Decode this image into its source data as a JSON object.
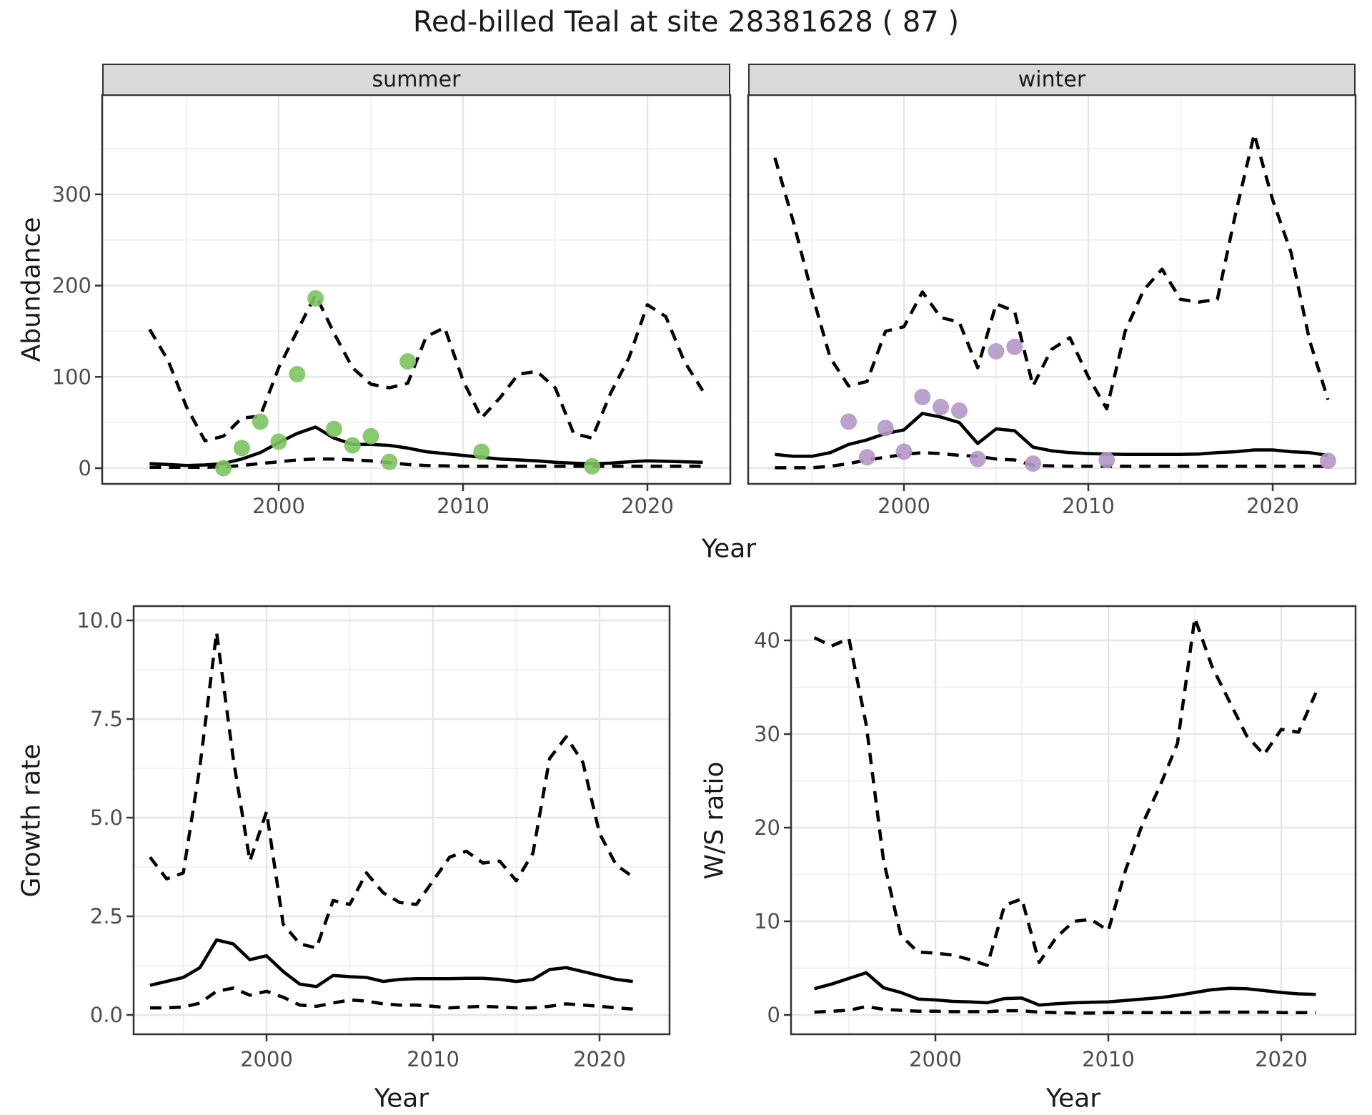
{
  "title": "Red-billed Teal at site 28381628 ( 87 )",
  "facets": {
    "summer_label": "summer",
    "winter_label": "winter"
  },
  "axes": {
    "abundance_label": "Abundance",
    "year_label_top": "Year",
    "year_label_growth": "Year",
    "year_label_ws": "Year",
    "growth_label": "Growth rate",
    "ws_label": "W/S ratio"
  },
  "colors": {
    "summer_points": "#7cc462",
    "winter_points": "#b596c8",
    "line": "#000000",
    "grid_major": "#e6e6e6",
    "grid_minor": "#f0f0f0",
    "panel_border": "#333333",
    "strip_bg": "#d9d9d9",
    "tick_text": "#4d4d4d",
    "text": "#1a1a1a"
  },
  "chart_data": [
    {
      "type": "line",
      "facet": "summer",
      "title": "Red-billed Teal at site 28381628 ( 87 )",
      "xlabel": "Year",
      "ylabel": "Abundance",
      "legend_position": "none",
      "grid": true,
      "xlim": [
        1990.5,
        2024.5
      ],
      "ylim": [
        -17,
        409
      ],
      "x_ticks": [
        2000,
        2010,
        2020
      ],
      "x_tick_labels": [
        "2000",
        "2010",
        "2020"
      ],
      "x_minor": [
        1995,
        2005,
        2015
      ],
      "y_ticks": [
        0,
        100,
        200,
        300
      ],
      "y_tick_labels": [
        "0",
        "100",
        "200",
        "300"
      ],
      "y_minor": [
        50,
        150,
        250,
        350
      ],
      "x": [
        1993,
        1994,
        1995,
        1996,
        1997,
        1998,
        1999,
        2000,
        2001,
        2002,
        2003,
        2004,
        2005,
        2006,
        2007,
        2008,
        2009,
        2010,
        2011,
        2012,
        2013,
        2014,
        2015,
        2016,
        2017,
        2018,
        2019,
        2020,
        2021,
        2022,
        2023
      ],
      "series": [
        {
          "name": "upper_ci",
          "style": "dashed",
          "values": [
            152,
            118,
            67,
            30,
            35,
            55,
            57,
            110,
            150,
            190,
            148,
            110,
            92,
            88,
            93,
            144,
            154,
            96,
            55,
            77,
            103,
            106,
            88,
            38,
            33,
            82,
            121,
            179,
            166,
            117,
            85
          ]
        },
        {
          "name": "median",
          "style": "solid",
          "values": [
            5,
            4,
            3,
            3.5,
            5,
            10,
            17,
            28,
            38,
            45,
            33,
            26,
            26,
            25,
            22,
            18,
            16,
            14,
            12,
            10,
            9,
            8,
            6.5,
            5.5,
            4.7,
            5.5,
            7,
            8,
            7.5,
            7,
            6.5
          ]
        },
        {
          "name": "lower_ci",
          "style": "dashed",
          "values": [
            1,
            1,
            1,
            1,
            1.5,
            3,
            5,
            7,
            9,
            10,
            10,
            9,
            8,
            6,
            4,
            3,
            2.5,
            2,
            2,
            2,
            2,
            2,
            2,
            2,
            2,
            2,
            2,
            2,
            2,
            2,
            2
          ]
        }
      ],
      "points": {
        "name": "observed_counts",
        "color": "#7cc462",
        "x": [
          1997,
          1998,
          1999,
          2000,
          2001,
          2002,
          2003,
          2004,
          2005,
          2006,
          2007,
          2011,
          2017
        ],
        "y": [
          0,
          22,
          51,
          29,
          103,
          186,
          43,
          25,
          35,
          7,
          117,
          18,
          2
        ]
      }
    },
    {
      "type": "line",
      "facet": "winter",
      "title": "Red-billed Teal at site 28381628 ( 87 )",
      "xlabel": "Year",
      "ylabel": "Abundance",
      "legend_position": "none",
      "grid": true,
      "xlim": [
        1991.5,
        2024.5
      ],
      "ylim": [
        -17,
        409
      ],
      "x_ticks": [
        2000,
        2010,
        2020
      ],
      "x_tick_labels": [
        "2000",
        "2010",
        "2020"
      ],
      "x_minor": [
        1995,
        2005,
        2015
      ],
      "y_ticks": [
        0,
        100,
        200,
        300
      ],
      "y_tick_labels": [
        "0",
        "100",
        "200",
        "300"
      ],
      "y_minor": [
        50,
        150,
        250,
        350
      ],
      "x": [
        1993,
        1994,
        1995,
        1996,
        1997,
        1998,
        1999,
        2000,
        2001,
        2002,
        2003,
        2004,
        2005,
        2006,
        2007,
        2008,
        2009,
        2010,
        2011,
        2012,
        2013,
        2014,
        2015,
        2016,
        2017,
        2018,
        2019,
        2020,
        2021,
        2022,
        2023
      ],
      "series": [
        {
          "name": "upper_ci",
          "style": "dashed",
          "values": [
            340,
            270,
            192,
            121,
            90,
            95,
            150,
            155,
            193,
            165,
            160,
            110,
            180,
            172,
            90,
            130,
            143,
            100,
            65,
            150,
            195,
            218,
            185,
            182,
            185,
            280,
            366,
            294,
            236,
            140,
            75
          ]
        },
        {
          "name": "median",
          "style": "solid",
          "values": [
            15,
            13,
            13,
            17,
            26,
            31,
            38,
            42,
            60,
            56,
            50,
            27,
            43,
            41,
            23,
            19,
            17,
            16,
            15.5,
            15,
            15,
            15,
            15,
            15.5,
            17,
            18,
            20,
            20,
            18,
            17,
            14
          ]
        },
        {
          "name": "lower_ci",
          "style": "dashed",
          "values": [
            0.5,
            0.5,
            0.5,
            2,
            5,
            9,
            12,
            15,
            17,
            16,
            14,
            13,
            10,
            9,
            3,
            2.5,
            2,
            2,
            2,
            2,
            2,
            2,
            2,
            2,
            2,
            2,
            2,
            2,
            2,
            2,
            2
          ]
        }
      ],
      "points": {
        "name": "observed_counts",
        "color": "#b596c8",
        "x": [
          1997,
          1998,
          1999,
          2000,
          2001,
          2002,
          2003,
          2004,
          2005,
          2006,
          2007,
          2011,
          2023
        ],
        "y": [
          51,
          12,
          44,
          18,
          78,
          67,
          63,
          10,
          128,
          133,
          5,
          9,
          8
        ]
      }
    },
    {
      "type": "line",
      "facet": null,
      "title": "",
      "xlabel": "Year",
      "ylabel": "Growth rate",
      "legend_position": "none",
      "grid": true,
      "xlim": [
        1992,
        2024.2
      ],
      "ylim": [
        -0.5,
        10.4
      ],
      "x_ticks": [
        2000,
        2010,
        2020
      ],
      "x_tick_labels": [
        "2000",
        "2010",
        "2020"
      ],
      "x_minor": [
        1995,
        2005,
        2015
      ],
      "y_ticks": [
        0,
        2.5,
        5,
        7.5,
        10
      ],
      "y_tick_labels": [
        "0.0",
        "2.5",
        "5.0",
        "7.5",
        "10.0"
      ],
      "y_minor": [
        1.25,
        3.75,
        6.25,
        8.75
      ],
      "x": [
        1993,
        1994,
        1995,
        1996,
        1997,
        1998,
        1999,
        2000,
        2001,
        2002,
        2003,
        2004,
        2005,
        2006,
        2007,
        2008,
        2009,
        2010,
        2011,
        2012,
        2013,
        2014,
        2015,
        2016,
        2017,
        2018,
        2019,
        2020,
        2021,
        2022
      ],
      "series": [
        {
          "name": "upper_ci",
          "style": "dashed",
          "values": [
            4.0,
            3.45,
            3.6,
            6.3,
            9.7,
            6.5,
            3.9,
            5.15,
            2.3,
            1.8,
            1.7,
            2.9,
            2.8,
            3.6,
            3.1,
            2.85,
            2.8,
            3.4,
            4.0,
            4.15,
            3.85,
            3.9,
            3.4,
            4.1,
            6.5,
            7.05,
            6.4,
            4.6,
            3.8,
            3.5
          ]
        },
        {
          "name": "median",
          "style": "solid",
          "values": [
            0.75,
            0.85,
            0.95,
            1.2,
            1.9,
            1.8,
            1.4,
            1.5,
            1.1,
            0.78,
            0.72,
            1.0,
            0.97,
            0.95,
            0.85,
            0.9,
            0.92,
            0.92,
            0.92,
            0.93,
            0.93,
            0.9,
            0.85,
            0.9,
            1.15,
            1.2,
            1.1,
            1.0,
            0.9,
            0.85
          ]
        },
        {
          "name": "lower_ci",
          "style": "dashed",
          "values": [
            0.18,
            0.18,
            0.2,
            0.3,
            0.6,
            0.68,
            0.5,
            0.6,
            0.45,
            0.25,
            0.22,
            0.3,
            0.38,
            0.35,
            0.28,
            0.25,
            0.25,
            0.22,
            0.18,
            0.2,
            0.22,
            0.2,
            0.18,
            0.18,
            0.22,
            0.28,
            0.25,
            0.22,
            0.18,
            0.15
          ]
        }
      ],
      "points": null
    },
    {
      "type": "line",
      "facet": null,
      "title": "",
      "xlabel": "Year",
      "ylabel": "W/S ratio",
      "legend_position": "none",
      "grid": true,
      "xlim": [
        1991.7,
        2024.3
      ],
      "ylim": [
        -2,
        43.7
      ],
      "x_ticks": [
        2000,
        2010,
        2020
      ],
      "x_tick_labels": [
        "2000",
        "2010",
        "2020"
      ],
      "x_minor": [
        1995,
        2005,
        2015
      ],
      "y_ticks": [
        0,
        10,
        20,
        30,
        40
      ],
      "y_tick_labels": [
        "0",
        "10",
        "20",
        "30",
        "40"
      ],
      "y_minor": [
        5,
        15,
        25,
        35
      ],
      "x": [
        1993,
        1994,
        1995,
        1996,
        1997,
        1998,
        1999,
        2000,
        2001,
        2002,
        2003,
        2004,
        2005,
        2006,
        2007,
        2008,
        2009,
        2010,
        2011,
        2012,
        2013,
        2014,
        2015,
        2016,
        2017,
        2018,
        2019,
        2020,
        2021,
        2022
      ],
      "series": [
        {
          "name": "upper_ci",
          "style": "dashed",
          "values": [
            40.3,
            39.4,
            40.2,
            31,
            16.5,
            8.5,
            6.7,
            6.6,
            6.4,
            5.9,
            5.3,
            11.7,
            12.4,
            5.6,
            8.3,
            10.0,
            10.2,
            9.0,
            15.5,
            20.5,
            24.5,
            29,
            42.4,
            37.2,
            33.5,
            29.8,
            27.8,
            30.5,
            30.2,
            34.4
          ]
        },
        {
          "name": "median",
          "style": "solid",
          "values": [
            2.8,
            3.3,
            3.9,
            4.5,
            2.9,
            2.4,
            1.7,
            1.6,
            1.45,
            1.4,
            1.3,
            1.75,
            1.8,
            1.05,
            1.2,
            1.3,
            1.35,
            1.4,
            1.55,
            1.7,
            1.85,
            2.1,
            2.4,
            2.7,
            2.85,
            2.8,
            2.6,
            2.4,
            2.25,
            2.2
          ]
        },
        {
          "name": "lower_ci",
          "style": "dashed",
          "values": [
            0.3,
            0.4,
            0.5,
            0.9,
            0.6,
            0.5,
            0.4,
            0.4,
            0.35,
            0.35,
            0.35,
            0.45,
            0.45,
            0.3,
            0.25,
            0.2,
            0.2,
            0.25,
            0.25,
            0.25,
            0.25,
            0.25,
            0.25,
            0.3,
            0.3,
            0.3,
            0.3,
            0.25,
            0.25,
            0.25
          ]
        }
      ],
      "points": null
    }
  ]
}
